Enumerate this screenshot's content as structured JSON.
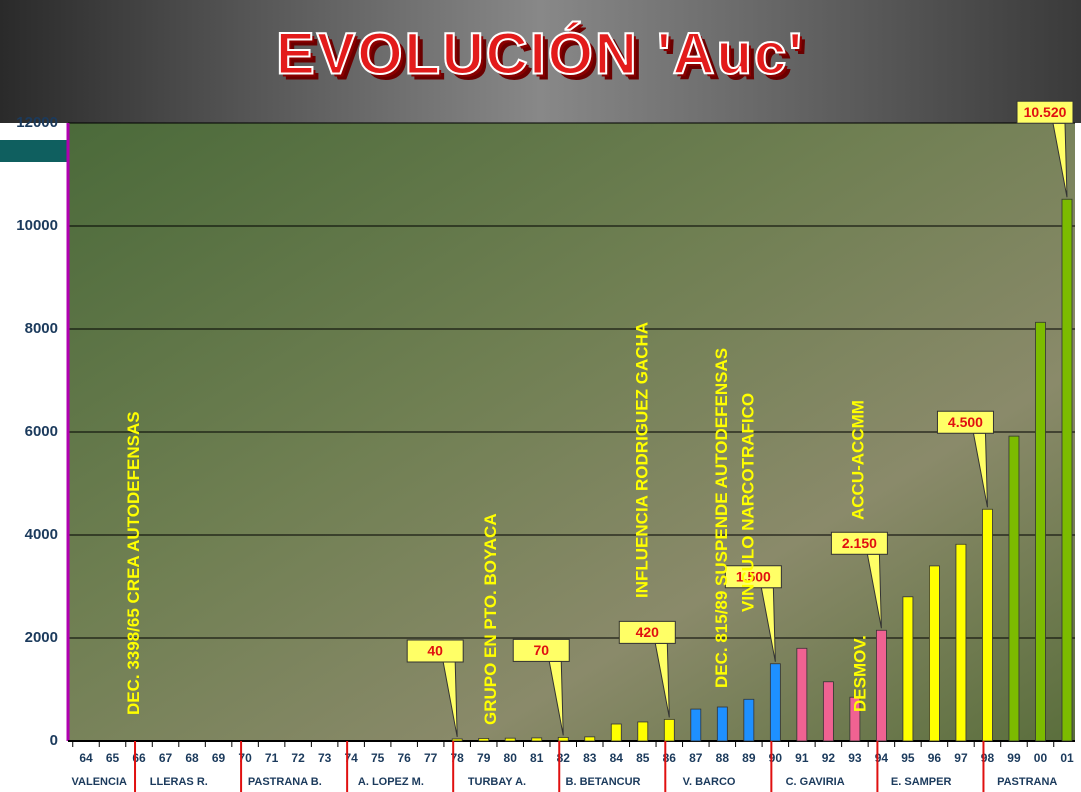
{
  "chart_data": {
    "type": "bar",
    "title": "EVOLUCIÓN 'Auc'",
    "categories": [
      "64",
      "65",
      "66",
      "67",
      "68",
      "69",
      "70",
      "71",
      "72",
      "73",
      "74",
      "75",
      "76",
      "77",
      "78",
      "79",
      "80",
      "81",
      "82",
      "83",
      "84",
      "85",
      "86",
      "87",
      "88",
      "89",
      "90",
      "91",
      "92",
      "93",
      "94",
      "95",
      "96",
      "97",
      "98",
      "99",
      "00",
      "01"
    ],
    "values": [
      0,
      0,
      0,
      0,
      0,
      0,
      0,
      0,
      0,
      0,
      0,
      0,
      0,
      0,
      40,
      50,
      55,
      60,
      70,
      80,
      330,
      370,
      420,
      620,
      660,
      810,
      1500,
      1800,
      1150,
      850,
      2150,
      2800,
      3400,
      3820,
      4500,
      5920,
      8130,
      10520
    ],
    "value_labels": [
      null,
      null,
      null,
      null,
      null,
      null,
      null,
      null,
      null,
      null,
      null,
      null,
      null,
      null,
      "40",
      null,
      null,
      null,
      "70",
      null,
      null,
      null,
      "420",
      null,
      null,
      null,
      "1.500",
      null,
      null,
      null,
      "2.150",
      null,
      null,
      null,
      "4.500",
      null,
      null,
      "10.520"
    ],
    "colors": [
      "#ffff00",
      "#ffff00",
      "#ffff00",
      "#ffff00",
      "#ffff00",
      "#ffff00",
      "#ffff00",
      "#ffff00",
      "#ffff00",
      "#ffff00",
      "#ffff00",
      "#ffff00",
      "#ffff00",
      "#ffff00",
      "#ffff00",
      "#ffff00",
      "#ffff00",
      "#ffff00",
      "#ffff00",
      "#ffff00",
      "#ffff00",
      "#ffff00",
      "#ffff00",
      "#1e90ff",
      "#1e90ff",
      "#1e90ff",
      "#1e90ff",
      "#f06292",
      "#f06292",
      "#f06292",
      "#f06292",
      "#ffff00",
      "#ffff00",
      "#ffff00",
      "#ffff00",
      "#7cbb00",
      "#7cbb00",
      "#7cbb00"
    ],
    "ylim": [
      0,
      12000
    ],
    "yticks": [
      0,
      2000,
      4000,
      6000,
      8000,
      10000,
      12000
    ],
    "grid": true,
    "periods": [
      {
        "label": "VALENCIA",
        "from": "64",
        "to": "65"
      },
      {
        "label": "LLERAS R.",
        "from": "66",
        "to": "69"
      },
      {
        "label": "PASTRANA B.",
        "from": "70",
        "to": "73"
      },
      {
        "label": "A. LOPEZ M.",
        "from": "74",
        "to": "77"
      },
      {
        "label": "TURBAY A.",
        "from": "78",
        "to": "81"
      },
      {
        "label": "B. BETANCUR",
        "from": "82",
        "to": "85"
      },
      {
        "label": "V. BARCO",
        "from": "86",
        "to": "89"
      },
      {
        "label": "C. GAVIRIA",
        "from": "90",
        "to": "93"
      },
      {
        "label": "E. SAMPER",
        "from": "94",
        "to": "97"
      },
      {
        "label": "PASTRANA",
        "from": "98",
        "to": "01"
      }
    ],
    "annotations": [
      {
        "text": "DEC. 3398/65 CREA AUTODEFENSAS",
        "at": "65"
      },
      {
        "text": "GRUPO EN PTO. BOYACA",
        "at": "79"
      },
      {
        "text": "INFLUENCIA RODRIGUEZ GACHA",
        "at": "85"
      },
      {
        "text": "DEC. 815/89 SUSPENDE AUTODEFENSAS",
        "at": "88"
      },
      {
        "text": "VINCULO NARCOTRAFICO",
        "at": "89"
      },
      {
        "text": "DESMOV.",
        "at": "93"
      },
      {
        "text": "ACCU-ACCMM",
        "at": "93"
      }
    ]
  }
}
